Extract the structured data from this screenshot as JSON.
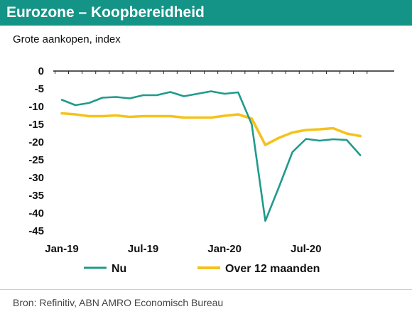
{
  "header": {
    "title": "Eurozone – Koopbereidheid",
    "subtitle": "Grote aankopen, index"
  },
  "footer": {
    "source": "Bron: Refinitiv, ABN AMRO Economisch Bureau"
  },
  "chart_data": {
    "type": "line",
    "x": [
      "2019-01",
      "2019-02",
      "2019-03",
      "2019-04",
      "2019-05",
      "2019-06",
      "2019-07",
      "2019-08",
      "2019-09",
      "2019-10",
      "2019-11",
      "2019-12",
      "2020-01",
      "2020-02",
      "2020-03",
      "2020-04",
      "2020-05",
      "2020-06",
      "2020-07",
      "2020-08",
      "2020-09",
      "2020-10",
      "2020-11"
    ],
    "x_tick_labels": [
      "Jan-19",
      "Jul-19",
      "Jan-20",
      "Jul-20"
    ],
    "x_tick_positions": [
      "2019-01",
      "2019-07",
      "2020-01",
      "2020-07"
    ],
    "ylim": [
      -45,
      0
    ],
    "y_ticks": [
      0,
      -5,
      -10,
      -15,
      -20,
      -25,
      -30,
      -35,
      -40,
      -45
    ],
    "grid": false,
    "legend_position": "bottom",
    "series": [
      {
        "name": "Nu",
        "color": "#1f9a8c",
        "values": [
          -8.1,
          -9.6,
          -9.0,
          -7.5,
          -7.3,
          -7.7,
          -6.8,
          -6.8,
          -5.9,
          -7.1,
          -6.4,
          -5.7,
          -6.4,
          -6.0,
          -15.0,
          -42.2,
          -32.7,
          -22.8,
          -19.1,
          -19.6,
          -19.2,
          -19.4,
          -23.7
        ]
      },
      {
        "name": "Over 12 maanden",
        "color": "#f5c21b",
        "values": [
          -11.9,
          -12.2,
          -12.7,
          -12.7,
          -12.5,
          -12.9,
          -12.7,
          -12.7,
          -12.7,
          -13.1,
          -13.1,
          -13.1,
          -12.6,
          -12.2,
          -13.4,
          -20.8,
          -18.8,
          -17.3,
          -16.6,
          -16.4,
          -16.1,
          -17.6,
          -18.3
        ]
      }
    ]
  }
}
